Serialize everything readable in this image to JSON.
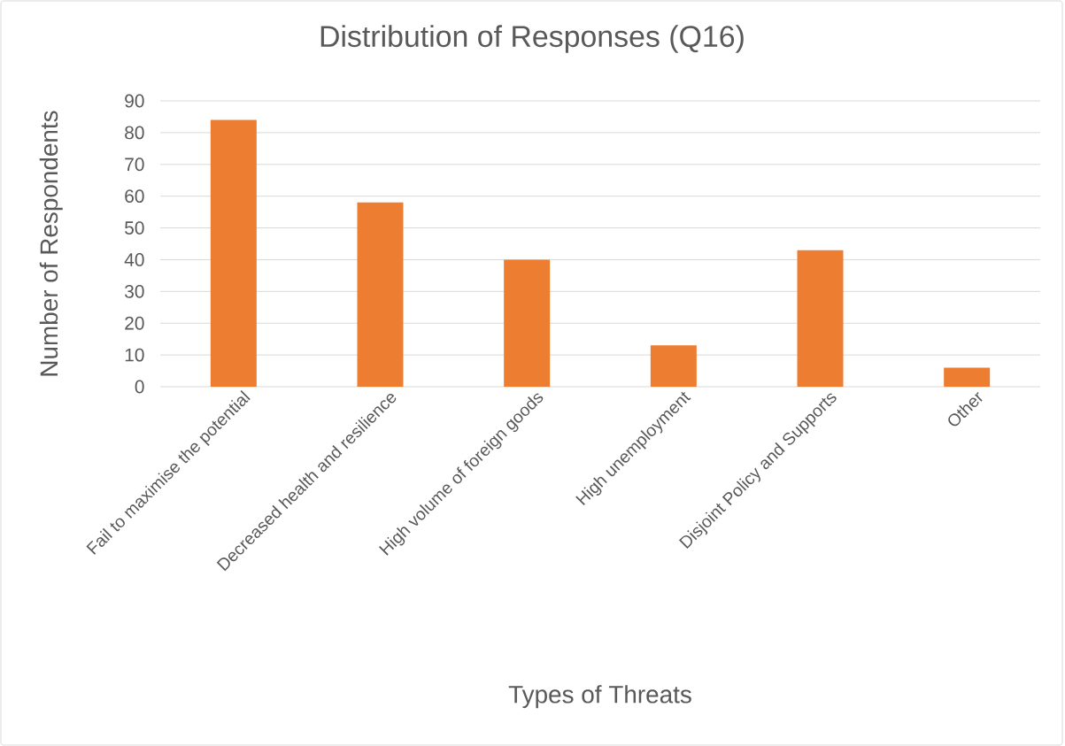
{
  "chart_data": {
    "type": "bar",
    "title": "Distribution of Responses (Q16)",
    "xlabel": "Types of Threats",
    "ylabel": "Number of Respondents",
    "categories": [
      "Fail to maximise the potential",
      "Decreased health and resilience",
      "High volume of foreign goods",
      "High unemployment",
      "Disjoint Policy and Supports",
      "Other"
    ],
    "values": [
      84,
      58,
      40,
      13,
      43,
      6
    ],
    "color": "#ed7d31",
    "ylim": [
      0,
      90
    ],
    "yticks": [
      0,
      10,
      20,
      30,
      40,
      50,
      60,
      70,
      80,
      90
    ],
    "grid": "y"
  }
}
